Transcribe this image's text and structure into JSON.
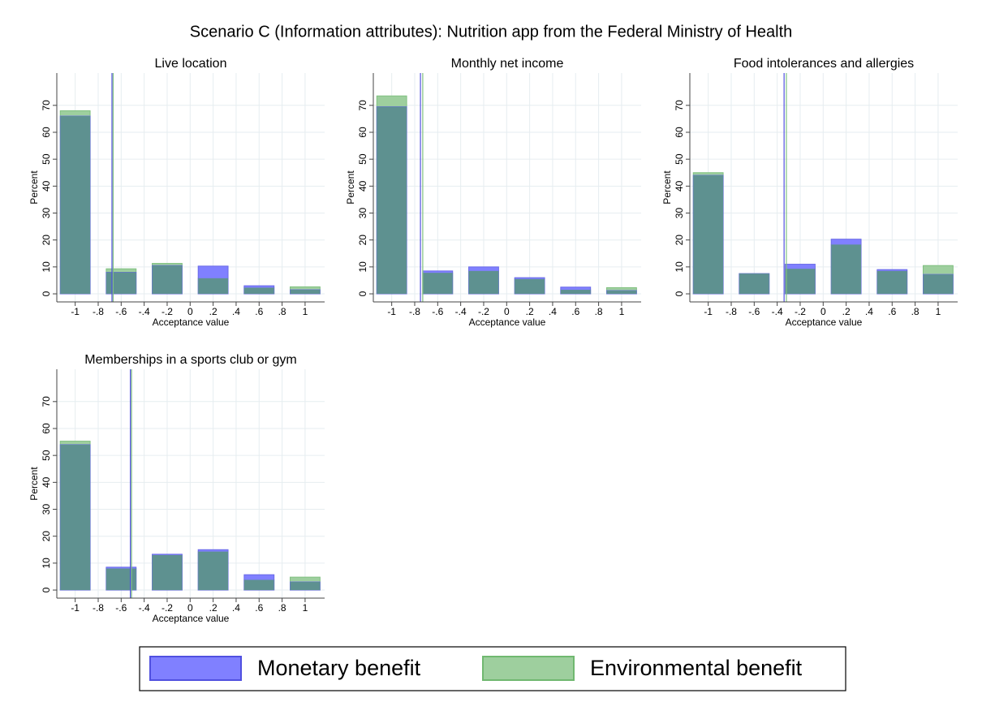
{
  "title": "Scenario C (Information attributes): Nutrition app from the Federal Ministry of Health",
  "chart_data": [
    {
      "type": "histogram",
      "title": "Live location",
      "xlabel": "Acceptance value",
      "ylabel": "Percent",
      "x": [
        -1,
        -0.6,
        -0.2,
        0.2,
        0.6,
        1
      ],
      "series": [
        {
          "name": "Monetary benefit",
          "color": "#8080ff",
          "values": [
            66,
            8,
            10.5,
            10.3,
            3,
            1.5
          ],
          "mean": -0.68
        },
        {
          "name": "Environmental benefit",
          "color": "#9ecf9e",
          "values": [
            68,
            9.3,
            11.3,
            5.8,
            2.3,
            2.6
          ],
          "mean": -0.67
        }
      ],
      "xlim": [
        -1.16,
        1.17
      ],
      "ylim": [
        -3,
        82
      ],
      "xticks": [
        {
          "value": -1,
          "label": "-1"
        },
        {
          "value": -0.8,
          "label": "-.8"
        },
        {
          "value": -0.6,
          "label": "-.6"
        },
        {
          "value": -0.4,
          "label": "-.4"
        },
        {
          "value": -0.2,
          "label": "-.2"
        },
        0,
        {
          "value": 0.2,
          "label": ".2"
        },
        {
          "value": 0.4,
          "label": ".4"
        },
        {
          "value": 0.6,
          "label": ".6"
        },
        {
          "value": 0.8,
          "label": ".8"
        },
        1
      ],
      "yticks": [
        0,
        10,
        20,
        30,
        40,
        50,
        60,
        70
      ],
      "grid": true
    },
    {
      "type": "histogram",
      "title": "Monthly net income",
      "xlabel": "Acceptance value",
      "ylabel": "Percent",
      "x": [
        -1,
        -0.6,
        -0.2,
        0.2,
        0.6,
        1
      ],
      "series": [
        {
          "name": "Monetary benefit",
          "color": "#8080ff",
          "values": [
            69.5,
            8.5,
            10,
            6,
            2.5,
            1.2
          ],
          "mean": -0.75
        },
        {
          "name": "Environmental benefit",
          "color": "#9ecf9e",
          "values": [
            73.5,
            7.8,
            8.5,
            5.5,
            1.5,
            2.3
          ],
          "mean": -0.73
        }
      ],
      "xlim": [
        -1.16,
        1.17
      ],
      "ylim": [
        -3,
        82
      ],
      "xticks": [
        {
          "value": -1,
          "label": "-1"
        },
        {
          "value": -0.8,
          "label": "-.8"
        },
        {
          "value": -0.6,
          "label": "-.6"
        },
        {
          "value": -0.4,
          "label": "-.4"
        },
        {
          "value": -0.2,
          "label": "-.2"
        },
        0,
        {
          "value": 0.2,
          "label": ".2"
        },
        {
          "value": 0.4,
          "label": ".4"
        },
        {
          "value": 0.6,
          "label": ".6"
        },
        {
          "value": 0.8,
          "label": ".8"
        },
        1
      ],
      "yticks": [
        0,
        10,
        20,
        30,
        40,
        50,
        60,
        70
      ],
      "grid": true
    },
    {
      "type": "histogram",
      "title": "Food intolerances and allergies",
      "xlabel": "Acceptance value",
      "ylabel": "Percent",
      "x": [
        -1,
        -0.6,
        -0.2,
        0.2,
        0.6,
        1
      ],
      "series": [
        {
          "name": "Monetary benefit",
          "color": "#8080ff",
          "values": [
            44,
            7.5,
            11,
            20.3,
            9,
            7.2
          ],
          "mean": -0.34
        },
        {
          "name": "Environmental benefit",
          "color": "#9ecf9e",
          "values": [
            45,
            7.5,
            9.3,
            18.3,
            8.5,
            10.5
          ],
          "mean": -0.32
        }
      ],
      "xlim": [
        -1.16,
        1.17
      ],
      "ylim": [
        -3,
        82
      ],
      "xticks": [
        {
          "value": -1,
          "label": "-1"
        },
        {
          "value": -0.8,
          "label": "-.8"
        },
        {
          "value": -0.6,
          "label": "-.6"
        },
        {
          "value": -0.4,
          "label": "-.4"
        },
        {
          "value": -0.2,
          "label": "-.2"
        },
        0,
        {
          "value": 0.2,
          "label": ".2"
        },
        {
          "value": 0.4,
          "label": ".4"
        },
        {
          "value": 0.6,
          "label": ".6"
        },
        {
          "value": 0.8,
          "label": ".8"
        },
        1
      ],
      "yticks": [
        0,
        10,
        20,
        30,
        40,
        50,
        60,
        70
      ],
      "grid": true
    },
    {
      "type": "histogram",
      "title": "Memberships in a sports club or gym",
      "xlabel": "Acceptance value",
      "ylabel": "Percent",
      "x": [
        -1,
        -0.6,
        -0.2,
        0.2,
        0.6,
        1
      ],
      "series": [
        {
          "name": "Monetary benefit",
          "color": "#8080ff",
          "values": [
            54,
            8.5,
            13.3,
            15,
            5.7,
            3
          ],
          "mean": -0.52
        },
        {
          "name": "Environmental benefit",
          "color": "#9ecf9e",
          "values": [
            55.3,
            8,
            13,
            14.3,
            3.8,
            4.8
          ],
          "mean": -0.51
        }
      ],
      "xlim": [
        -1.16,
        1.17
      ],
      "ylim": [
        -3,
        82
      ],
      "xticks": [
        {
          "value": -1,
          "label": "-1"
        },
        {
          "value": -0.8,
          "label": "-.8"
        },
        {
          "value": -0.6,
          "label": "-.6"
        },
        {
          "value": -0.4,
          "label": "-.4"
        },
        {
          "value": -0.2,
          "label": "-.2"
        },
        0,
        {
          "value": 0.2,
          "label": ".2"
        },
        {
          "value": 0.4,
          "label": ".4"
        },
        {
          "value": 0.6,
          "label": ".6"
        },
        {
          "value": 0.8,
          "label": ".8"
        },
        1
      ],
      "yticks": [
        0,
        10,
        20,
        30,
        40,
        50,
        60,
        70
      ],
      "grid": true
    }
  ]
}
